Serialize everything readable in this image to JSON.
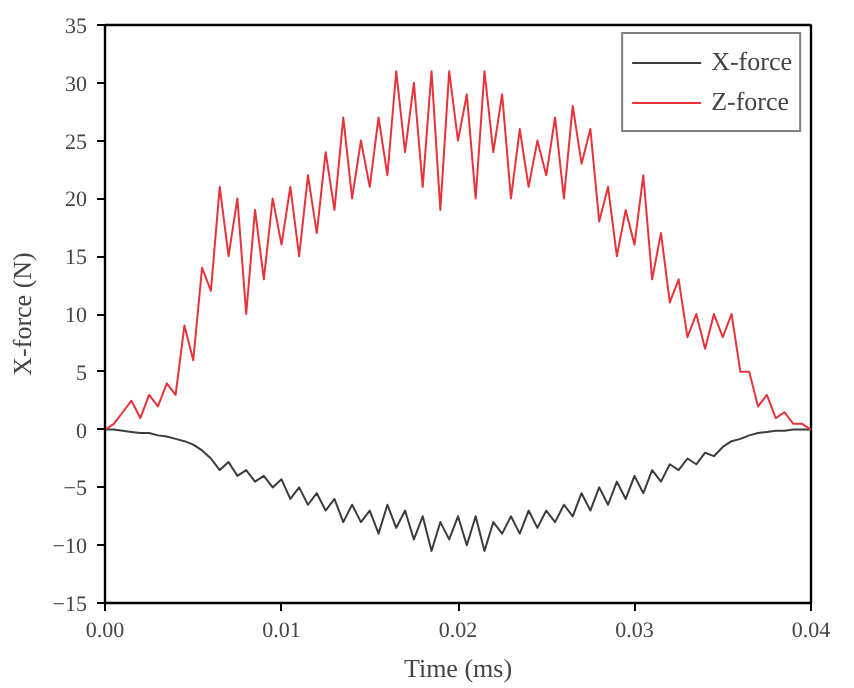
{
  "chart_data": {
    "type": "line",
    "xlabel": "Time (ms)",
    "ylabel": "X-force (N)",
    "x": [
      0,
      0.0005,
      0.001,
      0.0015,
      0.002,
      0.0025,
      0.003,
      0.0035,
      0.004,
      0.0045,
      0.005,
      0.0055,
      0.006,
      0.0065,
      0.007,
      0.0075,
      0.008,
      0.0085,
      0.009,
      0.0095,
      0.01,
      0.0105,
      0.011,
      0.0115,
      0.012,
      0.0125,
      0.013,
      0.0135,
      0.014,
      0.0145,
      0.015,
      0.0155,
      0.016,
      0.0165,
      0.017,
      0.0175,
      0.018,
      0.0185,
      0.019,
      0.0195,
      0.02,
      0.0205,
      0.021,
      0.0215,
      0.022,
      0.0225,
      0.023,
      0.0235,
      0.024,
      0.0245,
      0.025,
      0.0255,
      0.026,
      0.0265,
      0.027,
      0.0275,
      0.028,
      0.0285,
      0.029,
      0.0295,
      0.03,
      0.0305,
      0.031,
      0.0315,
      0.032,
      0.0325,
      0.033,
      0.0335,
      0.034,
      0.0345,
      0.035,
      0.0355,
      0.036,
      0.0365,
      0.037,
      0.0375,
      0.038,
      0.0385,
      0.039,
      0.0395,
      0.04
    ],
    "series": [
      {
        "name": "X-force",
        "color": "#3c3c3c",
        "values": [
          0,
          0,
          -0.1,
          -0.2,
          -0.3,
          -0.3,
          -0.5,
          -0.6,
          -0.8,
          -1,
          -1.3,
          -1.8,
          -2.5,
          -3.5,
          -2.8,
          -4,
          -3.5,
          -4.5,
          -4,
          -5,
          -4.3,
          -6,
          -5,
          -6.5,
          -5.5,
          -7,
          -6,
          -8,
          -6.5,
          -8,
          -7,
          -9,
          -6.5,
          -8.5,
          -7,
          -9.5,
          -7.5,
          -10.5,
          -8,
          -9.5,
          -7.5,
          -10,
          -7.5,
          -10.5,
          -8,
          -9,
          -7.5,
          -9,
          -7,
          -8.5,
          -7,
          -8,
          -6.5,
          -7.5,
          -5.5,
          -7,
          -5,
          -6.5,
          -4.5,
          -6,
          -4,
          -5.5,
          -3.5,
          -4.5,
          -3,
          -3.5,
          -2.5,
          -3,
          -2,
          -2.3,
          -1.5,
          -1,
          -0.8,
          -0.5,
          -0.3,
          -0.2,
          -0.1,
          -0.1,
          0,
          0,
          0
        ]
      },
      {
        "name": "Z-force",
        "color": "#e8333a",
        "values": [
          0,
          0.5,
          1.5,
          2.5,
          1,
          3,
          2,
          4,
          3,
          9,
          6,
          14,
          12,
          21,
          15,
          20,
          10,
          19,
          13,
          20,
          16,
          21,
          15,
          22,
          17,
          24,
          19,
          27,
          20,
          25,
          21,
          27,
          22,
          31,
          24,
          30,
          21,
          31,
          19,
          31,
          25,
          29,
          20,
          31,
          24,
          29,
          20,
          26,
          21,
          25,
          22,
          27,
          20,
          28,
          23,
          26,
          18,
          21,
          15,
          19,
          16,
          22,
          13,
          17,
          11,
          13,
          8,
          10,
          7,
          10,
          8,
          10,
          5,
          5,
          2,
          3,
          1,
          1.5,
          0.5,
          0.5,
          0
        ]
      }
    ],
    "xlim": [
      0,
      0.04
    ],
    "xticks": [
      {
        "value": 0,
        "label": "0.00"
      },
      0.01,
      0.02,
      0.03,
      0.04
    ],
    "ylim": [
      -15,
      35
    ],
    "yticks": [
      -15,
      -10,
      -5,
      0,
      5,
      10,
      15,
      20,
      25,
      30,
      35
    ],
    "grid": false,
    "legend": "top right",
    "marker": "none",
    "line_style": "solid"
  }
}
